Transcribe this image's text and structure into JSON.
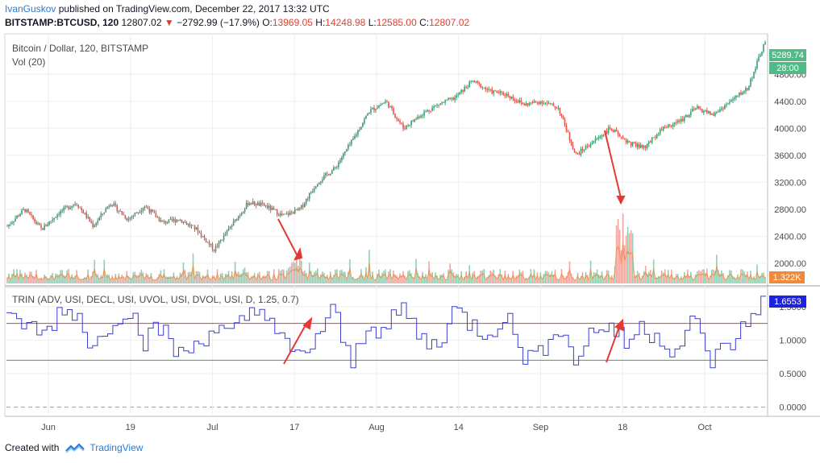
{
  "header": {
    "author": "IvanGuskov",
    "published": "published on TradingView.com, December 22, 2017 13:32 UTC",
    "symbol": "BITSTAMP:BTCUSD, 120",
    "last": "12807.02",
    "arrow": "▼",
    "change": "−2792.99 (−17.9%)",
    "o_label": "O:",
    "o_value": "13969.05",
    "h_label": "H:",
    "h_value": "14248.98",
    "l_label": "L:",
    "l_value": "12585.00",
    "c_label": "C:",
    "c_value": "12807.02"
  },
  "price_pane": {
    "title": "Bitcoin / Dollar, 120, BITSTAMP",
    "volume_label": "Vol (20)",
    "price_tag": "5289.74",
    "time_tag": "28:00",
    "volume_tag": "1.322K",
    "axis_ticks": [
      "4800.00",
      "4400.00",
      "4000.00",
      "3600.00",
      "3200.00",
      "2800.00",
      "2400.00",
      "2000.00"
    ]
  },
  "trin_pane": {
    "title": "TRIN (ADV, USI, DECL, USI, UVOL, USI, DVOL, USI, D, 1.25, 0.7)",
    "value_tag": "1.6553",
    "axis_ticks": [
      "1.5000",
      "1.0000",
      "0.5000",
      "0.0000"
    ]
  },
  "time_axis": [
    "Jun",
    "19",
    "Jul",
    "17",
    "Aug",
    "14",
    "Sep",
    "18",
    "Oct"
  ],
  "footer": {
    "created_with": "Created with",
    "brand": "TradingView"
  },
  "colors": {
    "up": "#3f9d74",
    "down": "#e0574d",
    "trin_line": "#3b3fd4",
    "upper_level": "#e53935",
    "lower_level": "#43a047",
    "annotation_arrow": "#e53935",
    "price_tag_bg": "#53b987",
    "volume_tag_bg": "#ef8a3c",
    "trin_tag_bg": "#1e22dd"
  },
  "chart_data": {
    "type": "candlestick",
    "title": "Bitcoin / Dollar, 120, BITSTAMP",
    "x": [
      "Jun",
      "19",
      "Jul",
      "17",
      "Aug",
      "14",
      "Sep",
      "18",
      "Oct"
    ],
    "price_keypoints": [
      2550,
      2800,
      2500,
      2750,
      2900,
      2550,
      2900,
      2650,
      2850,
      2600,
      2650,
      2500,
      2200,
      2550,
      2900,
      2850,
      2700,
      2800,
      3200,
      3400,
      3800,
      4250,
      4400,
      4000,
      4200,
      4350,
      4450,
      4700,
      4550,
      4500,
      4350,
      4400,
      4300,
      3600,
      3800,
      4000,
      3800,
      3700,
      4000,
      4100,
      4300,
      4200,
      4400,
      4600,
      5289.74
    ],
    "price_ylim": [
      1700,
      5400
    ],
    "trin_keypoints": [
      1.25,
      1.28,
      1.05,
      1.42,
      1.45,
      0.85,
      1.3,
      1.5,
      1.0,
      1.2,
      0.75,
      0.95,
      1.2,
      1.05,
      1.35,
      1.5,
      0.95,
      0.7,
      1.05,
      1.45,
      0.6,
      1.3,
      1.1,
      1.5,
      1.05,
      0.9,
      1.45,
      1.25,
      1.1,
      1.4,
      0.8,
      0.75,
      1.3,
      0.7,
      1.1,
      1.25,
      0.95,
      1.2,
      1.05,
      0.85,
      1.3,
      0.7,
      0.9,
      1.2,
      1.6553
    ],
    "trin_levels": [
      1.25,
      0.7
    ],
    "trin_ylim": [
      -0.1,
      1.75
    ]
  }
}
